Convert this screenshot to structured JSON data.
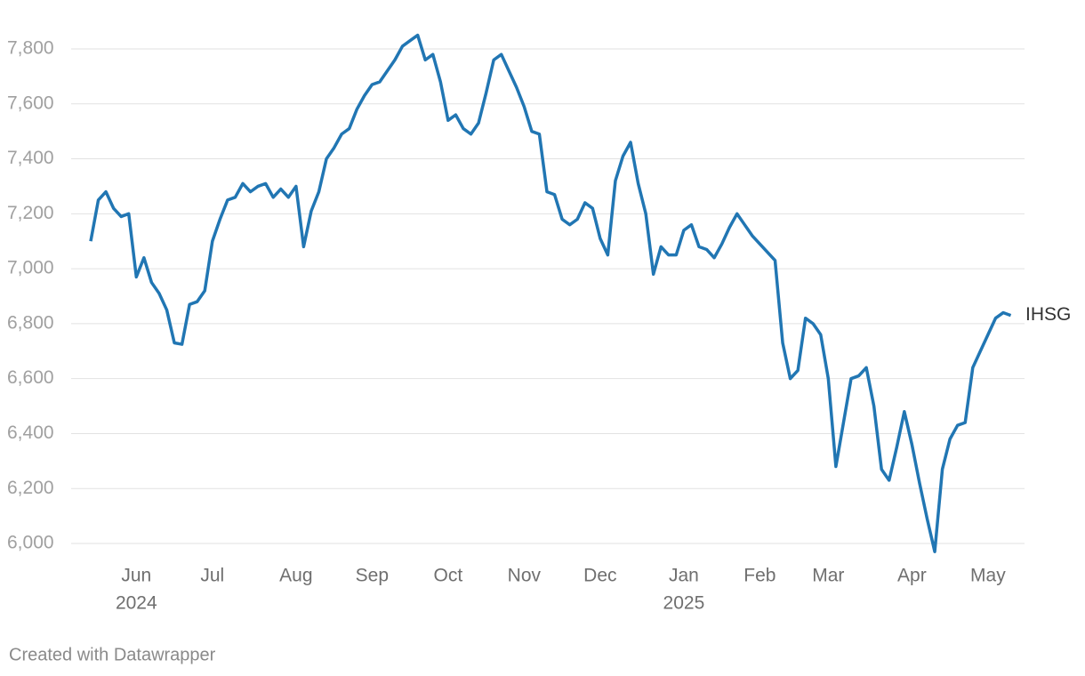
{
  "chart_data": {
    "type": "line",
    "categories": [
      null,
      null,
      null,
      null,
      null,
      null,
      "Jun",
      null,
      null,
      null,
      null,
      null,
      null,
      null,
      null,
      null,
      "Jul",
      null,
      null,
      null,
      null,
      null,
      null,
      null,
      null,
      null,
      null,
      "Aug",
      null,
      null,
      null,
      null,
      null,
      null,
      null,
      null,
      null,
      "Sep",
      null,
      null,
      null,
      null,
      null,
      null,
      null,
      null,
      null,
      "Oct",
      null,
      null,
      null,
      null,
      null,
      null,
      null,
      null,
      null,
      "Nov",
      null,
      null,
      null,
      null,
      null,
      null,
      null,
      null,
      null,
      "Dec",
      null,
      null,
      null,
      null,
      null,
      null,
      null,
      null,
      null,
      null,
      "Jan",
      null,
      null,
      null,
      null,
      null,
      null,
      null,
      null,
      null,
      "Feb",
      null,
      null,
      null,
      null,
      null,
      null,
      null,
      null,
      "Mar",
      null,
      null,
      null,
      null,
      null,
      null,
      null,
      null,
      null,
      null,
      "Apr",
      null,
      null,
      null,
      null,
      null,
      null,
      null,
      null,
      null,
      "May",
      null,
      null,
      null
    ],
    "category_years": [
      null,
      null,
      null,
      null,
      null,
      null,
      "2024",
      null,
      null,
      null,
      null,
      null,
      null,
      null,
      null,
      null,
      null,
      null,
      null,
      null,
      null,
      null,
      null,
      null,
      null,
      null,
      null,
      null,
      null,
      null,
      null,
      null,
      null,
      null,
      null,
      null,
      null,
      null,
      null,
      null,
      null,
      null,
      null,
      null,
      null,
      null,
      null,
      null,
      null,
      null,
      null,
      null,
      null,
      null,
      null,
      null,
      null,
      null,
      null,
      null,
      null,
      null,
      null,
      null,
      null,
      null,
      null,
      null,
      null,
      null,
      null,
      null,
      null,
      null,
      null,
      null,
      null,
      null,
      "2025",
      null,
      null,
      null,
      null,
      null,
      null,
      null,
      null,
      null,
      null,
      null,
      null,
      null,
      null,
      null,
      null,
      null,
      null,
      null,
      null,
      null,
      null,
      null,
      null,
      null,
      null,
      null,
      null,
      null,
      null,
      null,
      null,
      null,
      null,
      null,
      null,
      null,
      null,
      null,
      null,
      null,
      null,
      null
    ],
    "series": [
      {
        "name": "IHSG",
        "color": "#2176b3",
        "values": [
          7100,
          7250,
          7280,
          7220,
          7190,
          7200,
          6970,
          7040,
          6950,
          6910,
          6850,
          6730,
          6725,
          6870,
          6880,
          6920,
          7100,
          7180,
          7250,
          7260,
          7310,
          7280,
          7300,
          7310,
          7260,
          7290,
          7260,
          7300,
          7080,
          7210,
          7280,
          7400,
          7440,
          7490,
          7510,
          7580,
          7630,
          7670,
          7680,
          7720,
          7760,
          7810,
          7830,
          7850,
          7760,
          7780,
          7680,
          7540,
          7560,
          7510,
          7490,
          7530,
          7640,
          7760,
          7780,
          7720,
          7660,
          7590,
          7500,
          7490,
          7280,
          7270,
          7180,
          7160,
          7180,
          7240,
          7220,
          7110,
          7050,
          7320,
          7410,
          7460,
          7310,
          7200,
          6980,
          7080,
          7050,
          7050,
          7140,
          7160,
          7080,
          7070,
          7040,
          7090,
          7150,
          7200,
          7160,
          7120,
          7090,
          7060,
          7030,
          6730,
          6600,
          6630,
          6820,
          6800,
          6760,
          6600,
          6280,
          6440,
          6600,
          6610,
          6640,
          6500,
          6270,
          6230,
          6350,
          6480,
          6360,
          6220,
          6090,
          5970,
          6270,
          6380,
          6430,
          6440,
          6640,
          6700,
          6760,
          6820,
          6840,
          6830
        ]
      }
    ],
    "ylim": [
      6000,
      7800
    ],
    "yticks": [
      {
        "value": 6000,
        "label": "6,000"
      },
      {
        "value": 6200,
        "label": "6,200"
      },
      {
        "value": 6400,
        "label": "6,400"
      },
      {
        "value": 6600,
        "label": "6,600"
      },
      {
        "value": 6800,
        "label": "6,800"
      },
      {
        "value": 7000,
        "label": "7,000"
      },
      {
        "value": 7200,
        "label": "7,200"
      },
      {
        "value": 7400,
        "label": "7,400"
      },
      {
        "value": 7600,
        "label": "7,600"
      },
      {
        "value": 7800,
        "label": "7,800"
      }
    ],
    "grid": true,
    "footer": "Created with Datawrapper"
  }
}
